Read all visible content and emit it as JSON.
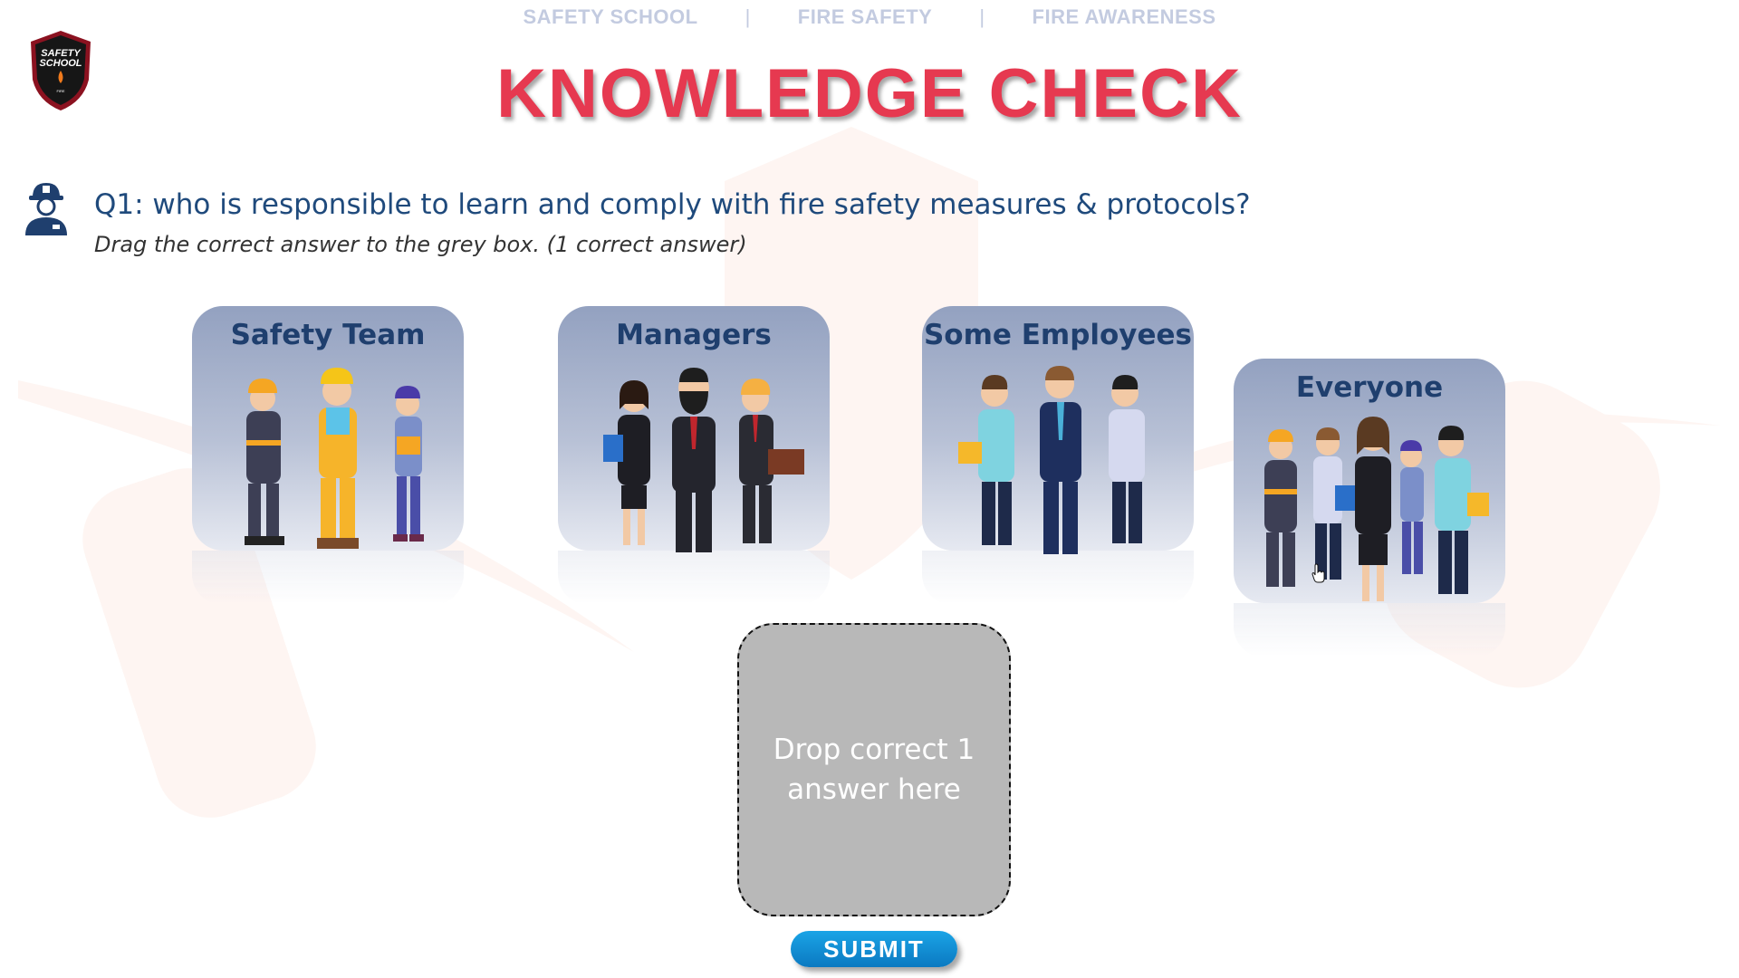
{
  "nav": {
    "items": [
      "SAFETY SCHOOL",
      "FIRE SAFETY",
      "FIRE AWARENESS"
    ],
    "separator": "|"
  },
  "logo": {
    "line1": "SAFETY",
    "line2": "SCHOOL",
    "line3": "FIRE",
    "icon": "shield-logo-icon"
  },
  "title": "KNOWLEDGE CHECK",
  "question": {
    "icon": "firefighter-avatar-icon",
    "text": "Q1: who is responsible to learn and comply with fire safety measures & protocols?",
    "instruction": "Drag the correct answer to the grey box. (1 correct answer)"
  },
  "answers": [
    {
      "label": "Safety Team",
      "icon": "safety-team-people-icon"
    },
    {
      "label": "Managers",
      "icon": "managers-people-icon"
    },
    {
      "label": "Some Employees",
      "icon": "employees-people-icon"
    },
    {
      "label": "Everyone",
      "icon": "everyone-people-icon"
    }
  ],
  "drop_zone": {
    "text": "Drop correct 1 answer here"
  },
  "submit_label": "SUBMIT",
  "colors": {
    "title": "#e63950",
    "question": "#1f4a7c",
    "card_top": "#93a1c0",
    "drop_zone": "#b8b8b8",
    "submit": "#0b79c1",
    "nav": "#c3cbe0"
  }
}
